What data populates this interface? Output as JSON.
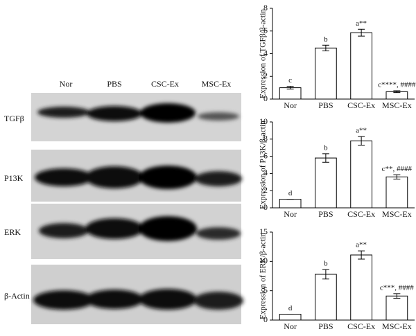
{
  "blot": {
    "lanes": [
      "Nor",
      "PBS",
      "CSC-Ex",
      "MSC-Ex"
    ],
    "rows": [
      "TGFβ",
      "P13K",
      "ERK",
      "β-Actin"
    ]
  },
  "chart_data": [
    {
      "type": "bar",
      "ylabel": "Expression of TGFβ/β-actin",
      "categories": [
        "Nor",
        "PBS",
        "CSC-Ex",
        "MSC-Ex"
      ],
      "values": [
        1.0,
        4.5,
        5.85,
        0.65
      ],
      "errors": [
        0.12,
        0.25,
        0.3,
        0.08
      ],
      "annotations": [
        "c",
        "b",
        "a**",
        "c****, ####"
      ],
      "color": "#ffffff",
      "ylim": [
        0,
        8
      ],
      "yticks": [
        0,
        2,
        4,
        6,
        8
      ]
    },
    {
      "type": "bar",
      "ylabel": "Expression of P13K/β-actin",
      "categories": [
        "Nor",
        "PBS",
        "CSC-Ex",
        "MSC-Ex"
      ],
      "values": [
        1.0,
        5.8,
        7.8,
        3.6
      ],
      "errors": [
        0,
        0.5,
        0.5,
        0.25
      ],
      "annotations": [
        "d",
        "b",
        "a**",
        "c**, ####"
      ],
      "color": "#ffffff",
      "ylim": [
        0,
        10
      ],
      "yticks": [
        0,
        2,
        4,
        6,
        8,
        10
      ]
    },
    {
      "type": "bar",
      "ylabel": "Expression of ERK/β-actin",
      "categories": [
        "Nor",
        "PBS",
        "CSC-Ex",
        "MSC-Ex"
      ],
      "values": [
        1.0,
        7.8,
        11.1,
        4.1
      ],
      "errors": [
        0,
        0.8,
        0.7,
        0.4
      ],
      "annotations": [
        "d",
        "b",
        "a**",
        "c***, ####"
      ],
      "color": "#ffffff",
      "ylim": [
        0,
        15
      ],
      "yticks": [
        0,
        5,
        10,
        15
      ]
    }
  ]
}
